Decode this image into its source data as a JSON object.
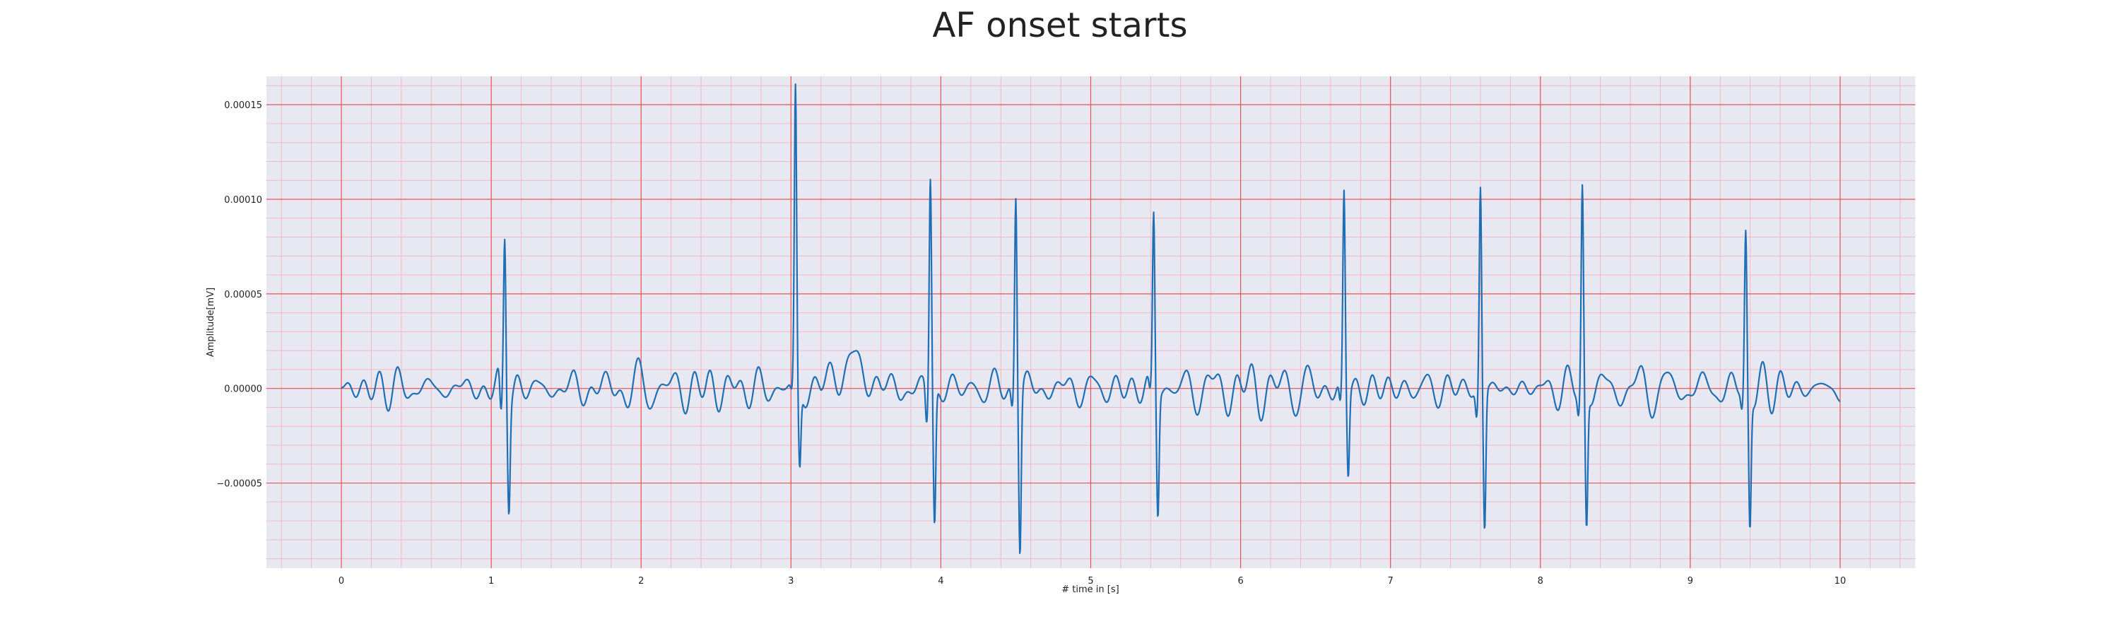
{
  "chart_data": {
    "type": "line",
    "title": "AF onset starts",
    "xlabel": "# time in [s]",
    "ylabel": "Amplitude[mV]",
    "xlim": [
      -0.5,
      10.5
    ],
    "ylim": [
      -9.5e-05,
      0.000165
    ],
    "x_ticks": [
      0,
      1,
      2,
      3,
      4,
      5,
      6,
      7,
      8,
      9,
      10
    ],
    "y_ticks": [
      -5e-05,
      0.0,
      5e-05,
      0.0001,
      0.00015
    ],
    "y_tick_labels": [
      "−0.00005",
      "0.00000",
      "0.00005",
      "0.00010",
      "0.00015"
    ],
    "grid": {
      "major": true,
      "minor": true,
      "major_x_step": 1,
      "minor_x_step": 0.2,
      "major_y_step": 5e-05,
      "minor_y_step": 1e-05
    },
    "series": [
      {
        "beats": [
          {
            "t": 1.09,
            "peak": 8.2e-05,
            "trough": -5.5e-05,
            "pre": -2.2e-05
          },
          {
            "t": 3.03,
            "peak": 0.000155,
            "trough": -4.2e-05,
            "pre": -5e-06
          },
          {
            "t": 3.93,
            "peak": 0.000112,
            "trough": -7.2e-05,
            "pre": -2e-05
          },
          {
            "t": 4.5,
            "peak": 0.000106,
            "trough": -8.3e-05,
            "pre": -1e-05
          },
          {
            "t": 5.42,
            "peak": 9.2e-05,
            "trough": -6.4e-05,
            "pre": -8e-06
          },
          {
            "t": 6.69,
            "peak": 0.000102,
            "trough": -4.5e-05,
            "pre": -1.2e-05
          },
          {
            "t": 7.6,
            "peak": 0.000106,
            "trough": -7.4e-05,
            "pre": -1.5e-05
          },
          {
            "t": 8.28,
            "peak": 0.000106,
            "trough": -7.1e-05,
            "pre": -1.2e-05
          },
          {
            "t": 9.37,
            "peak": 8.1e-05,
            "trough": -7.1e-05,
            "pre": -1e-05
          }
        ],
        "t_start": 0,
        "t_end": 10,
        "baseline_amplitude": 1.2e-05,
        "baseline_segments": [
          {
            "from": 3.2,
            "to": 3.6,
            "offset": 1.2e-05
          }
        ]
      }
    ]
  },
  "colors": {
    "line": "#1f6fb4",
    "plot_background": "#e8e8f2",
    "major_grid": "#e55555",
    "minor_grid": "#f3b8c0",
    "text": "#222222"
  }
}
